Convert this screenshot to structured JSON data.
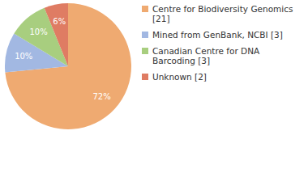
{
  "chart_data": {
    "type": "pie",
    "categories": [
      "Centre for Biodiversity Genomics [21]",
      "Mined from GenBank, NCBI [3]",
      "Canadian Centre for DNA Barcoding [3]",
      "Unknown [2]"
    ],
    "values": [
      72,
      10,
      10,
      6
    ],
    "value_labels": [
      "72%",
      "10%",
      "10%",
      "6%"
    ],
    "colors": [
      "#efaa71",
      "#a2b8e2",
      "#a8ce7f",
      "#df7c63"
    ],
    "data_labels": true,
    "legend": "upper right"
  }
}
